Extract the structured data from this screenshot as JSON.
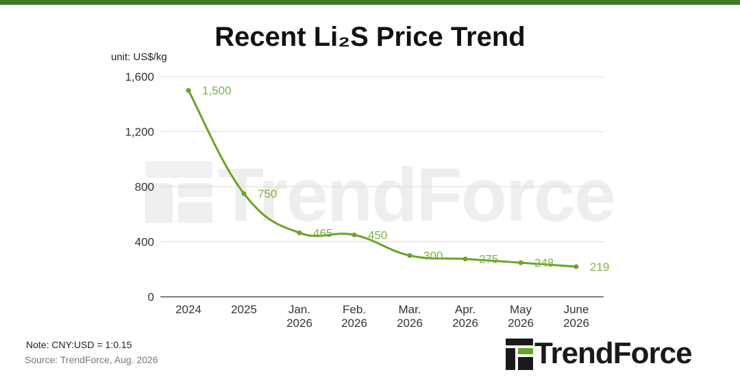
{
  "header": {
    "title": "Recent Li₂S Price Trend",
    "unit": "unit: US$/kg"
  },
  "footer": {
    "note": "Note: CNY:USD = 1:0.15",
    "source": "Source: TrendForce, Aug. 2026"
  },
  "brand": {
    "name": "TrendForce",
    "logo_icon": "trendforce-logo-icon",
    "watermark": "TrendForce"
  },
  "colors": {
    "line": "#6aa324",
    "label": "#7cb342",
    "top_bar": "#3d7a25",
    "grid": "#d9d9d9",
    "axis": "#555555",
    "watermark": "#e9e9e9"
  },
  "chart_data": {
    "type": "line",
    "title": "Recent Li₂S Price Trend",
    "ylabel": "unit: US$/kg",
    "xlabel": "",
    "categories": [
      [
        "2024"
      ],
      [
        "2025"
      ],
      [
        "Jan.",
        "2026"
      ],
      [
        "Feb.",
        "2026"
      ],
      [
        "Mar.",
        "2026"
      ],
      [
        "Apr.",
        "2026"
      ],
      [
        "May",
        "2026"
      ],
      [
        "June",
        "2026"
      ]
    ],
    "series": [
      {
        "values": [
          1500,
          750,
          465,
          450,
          300,
          275,
          248,
          219
        ],
        "data_labels": [
          "1,500",
          "750",
          "465",
          "450",
          "300",
          "275",
          "248",
          "219"
        ]
      }
    ],
    "ylim": [
      0,
      1600
    ],
    "yticks": [
      0,
      400,
      800,
      1200,
      1600
    ],
    "ytick_labels": [
      "0",
      "400",
      "800",
      "1,200",
      "1,600"
    ],
    "grid": true,
    "smooth": true,
    "legend": "none"
  }
}
